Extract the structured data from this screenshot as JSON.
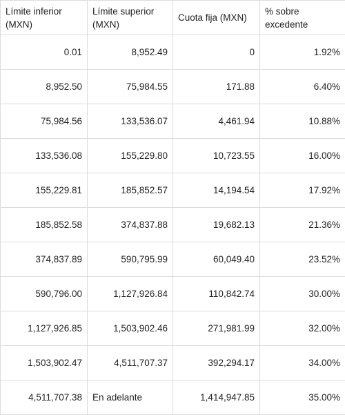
{
  "table": {
    "headers": [
      "Límite inferior (MXN)",
      "Límite superior (MXN)",
      "Cuota fija (MXN)",
      "% sobre excedente"
    ],
    "rows": [
      [
        "0.01",
        "8,952.49",
        "0",
        "1.92%"
      ],
      [
        "8,952.50",
        "75,984.55",
        "171.88",
        "6.40%"
      ],
      [
        "75,984.56",
        "133,536.07",
        "4,461.94",
        "10.88%"
      ],
      [
        "133,536.08",
        "155,229.80",
        "10,723.55",
        "16.00%"
      ],
      [
        "155,229.81",
        "185,852.57",
        "14,194.54",
        "17.92%"
      ],
      [
        "185,852.58",
        "374,837.88",
        "19,682.13",
        "21.36%"
      ],
      [
        "374,837.89",
        "590,795.99",
        "60,049.40",
        "23.52%"
      ],
      [
        "590,796.00",
        "1,127,926.84",
        "110,842.74",
        "30.00%"
      ],
      [
        "1,127,926.85",
        "1,503,902.46",
        "271,981.99",
        "32.00%"
      ],
      [
        "1,503,902.47",
        "4,511,707.37",
        "392,294.17",
        "34.00%"
      ],
      [
        "4,511,707.38",
        "En adelante",
        "1,414,947.85",
        "35.00%"
      ]
    ]
  }
}
